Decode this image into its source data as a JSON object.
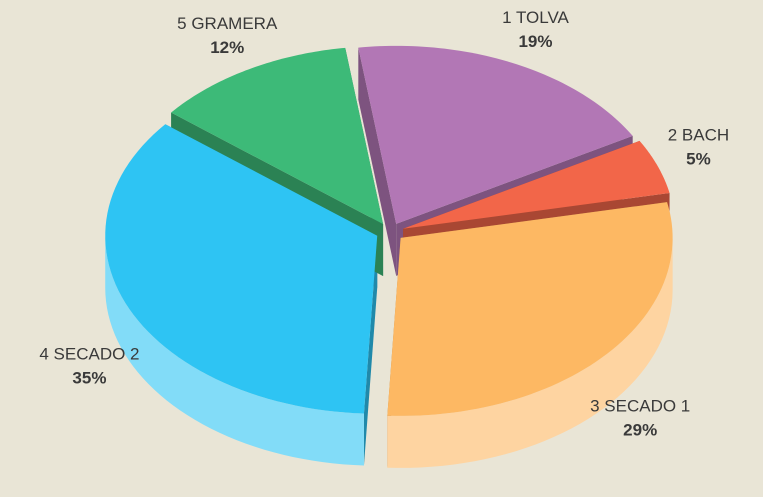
{
  "chart_data": {
    "type": "pie",
    "categories": [
      "1 TOLVA",
      "2 BACH",
      "3 SECADO 1",
      "4 SECADO 2",
      "5 GRAMERA"
    ],
    "values": [
      19,
      5,
      29,
      35,
      12
    ],
    "value_labels": [
      "19%",
      "5%",
      "29%",
      "35%",
      "12%"
    ],
    "colors": [
      "#b277b5",
      "#f26649",
      "#fdb863",
      "#2ec4f3",
      "#3dba78"
    ],
    "three_d": true
  }
}
